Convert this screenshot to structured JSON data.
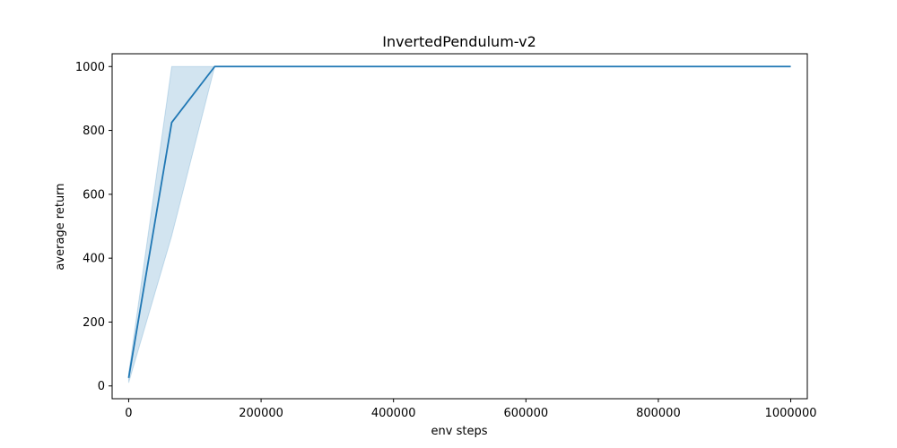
{
  "chart_data": {
    "type": "line",
    "title": "InvertedPendulum-v2",
    "xlabel": "env steps",
    "ylabel": "average return",
    "xlim": [
      -25000,
      1025000
    ],
    "ylim": [
      -40,
      1040
    ],
    "xticks": [
      0,
      200000,
      400000,
      600000,
      800000,
      1000000
    ],
    "xtick_labels": [
      "0",
      "200000",
      "400000",
      "600000",
      "800000",
      "1000000"
    ],
    "yticks": [
      0,
      200,
      400,
      600,
      800,
      1000
    ],
    "ytick_labels": [
      "0",
      "200",
      "400",
      "600",
      "800",
      "1000"
    ],
    "grid": false,
    "legend": false,
    "series": [
      {
        "color": "#1f77b4",
        "x": [
          0,
          65000,
          130000,
          200000,
          300000,
          400000,
          500000,
          600000,
          700000,
          800000,
          900000,
          1000000
        ],
        "mean": [
          25,
          825,
          1000,
          1000,
          1000,
          1000,
          1000,
          1000,
          1000,
          1000,
          1000,
          1000
        ],
        "lower": [
          10,
          470,
          1000,
          1000,
          1000,
          1000,
          1000,
          1000,
          1000,
          1000,
          1000,
          1000
        ],
        "upper": [
          40,
          1000,
          1000,
          1000,
          1000,
          1000,
          1000,
          1000,
          1000,
          1000,
          1000,
          1000
        ]
      }
    ]
  }
}
